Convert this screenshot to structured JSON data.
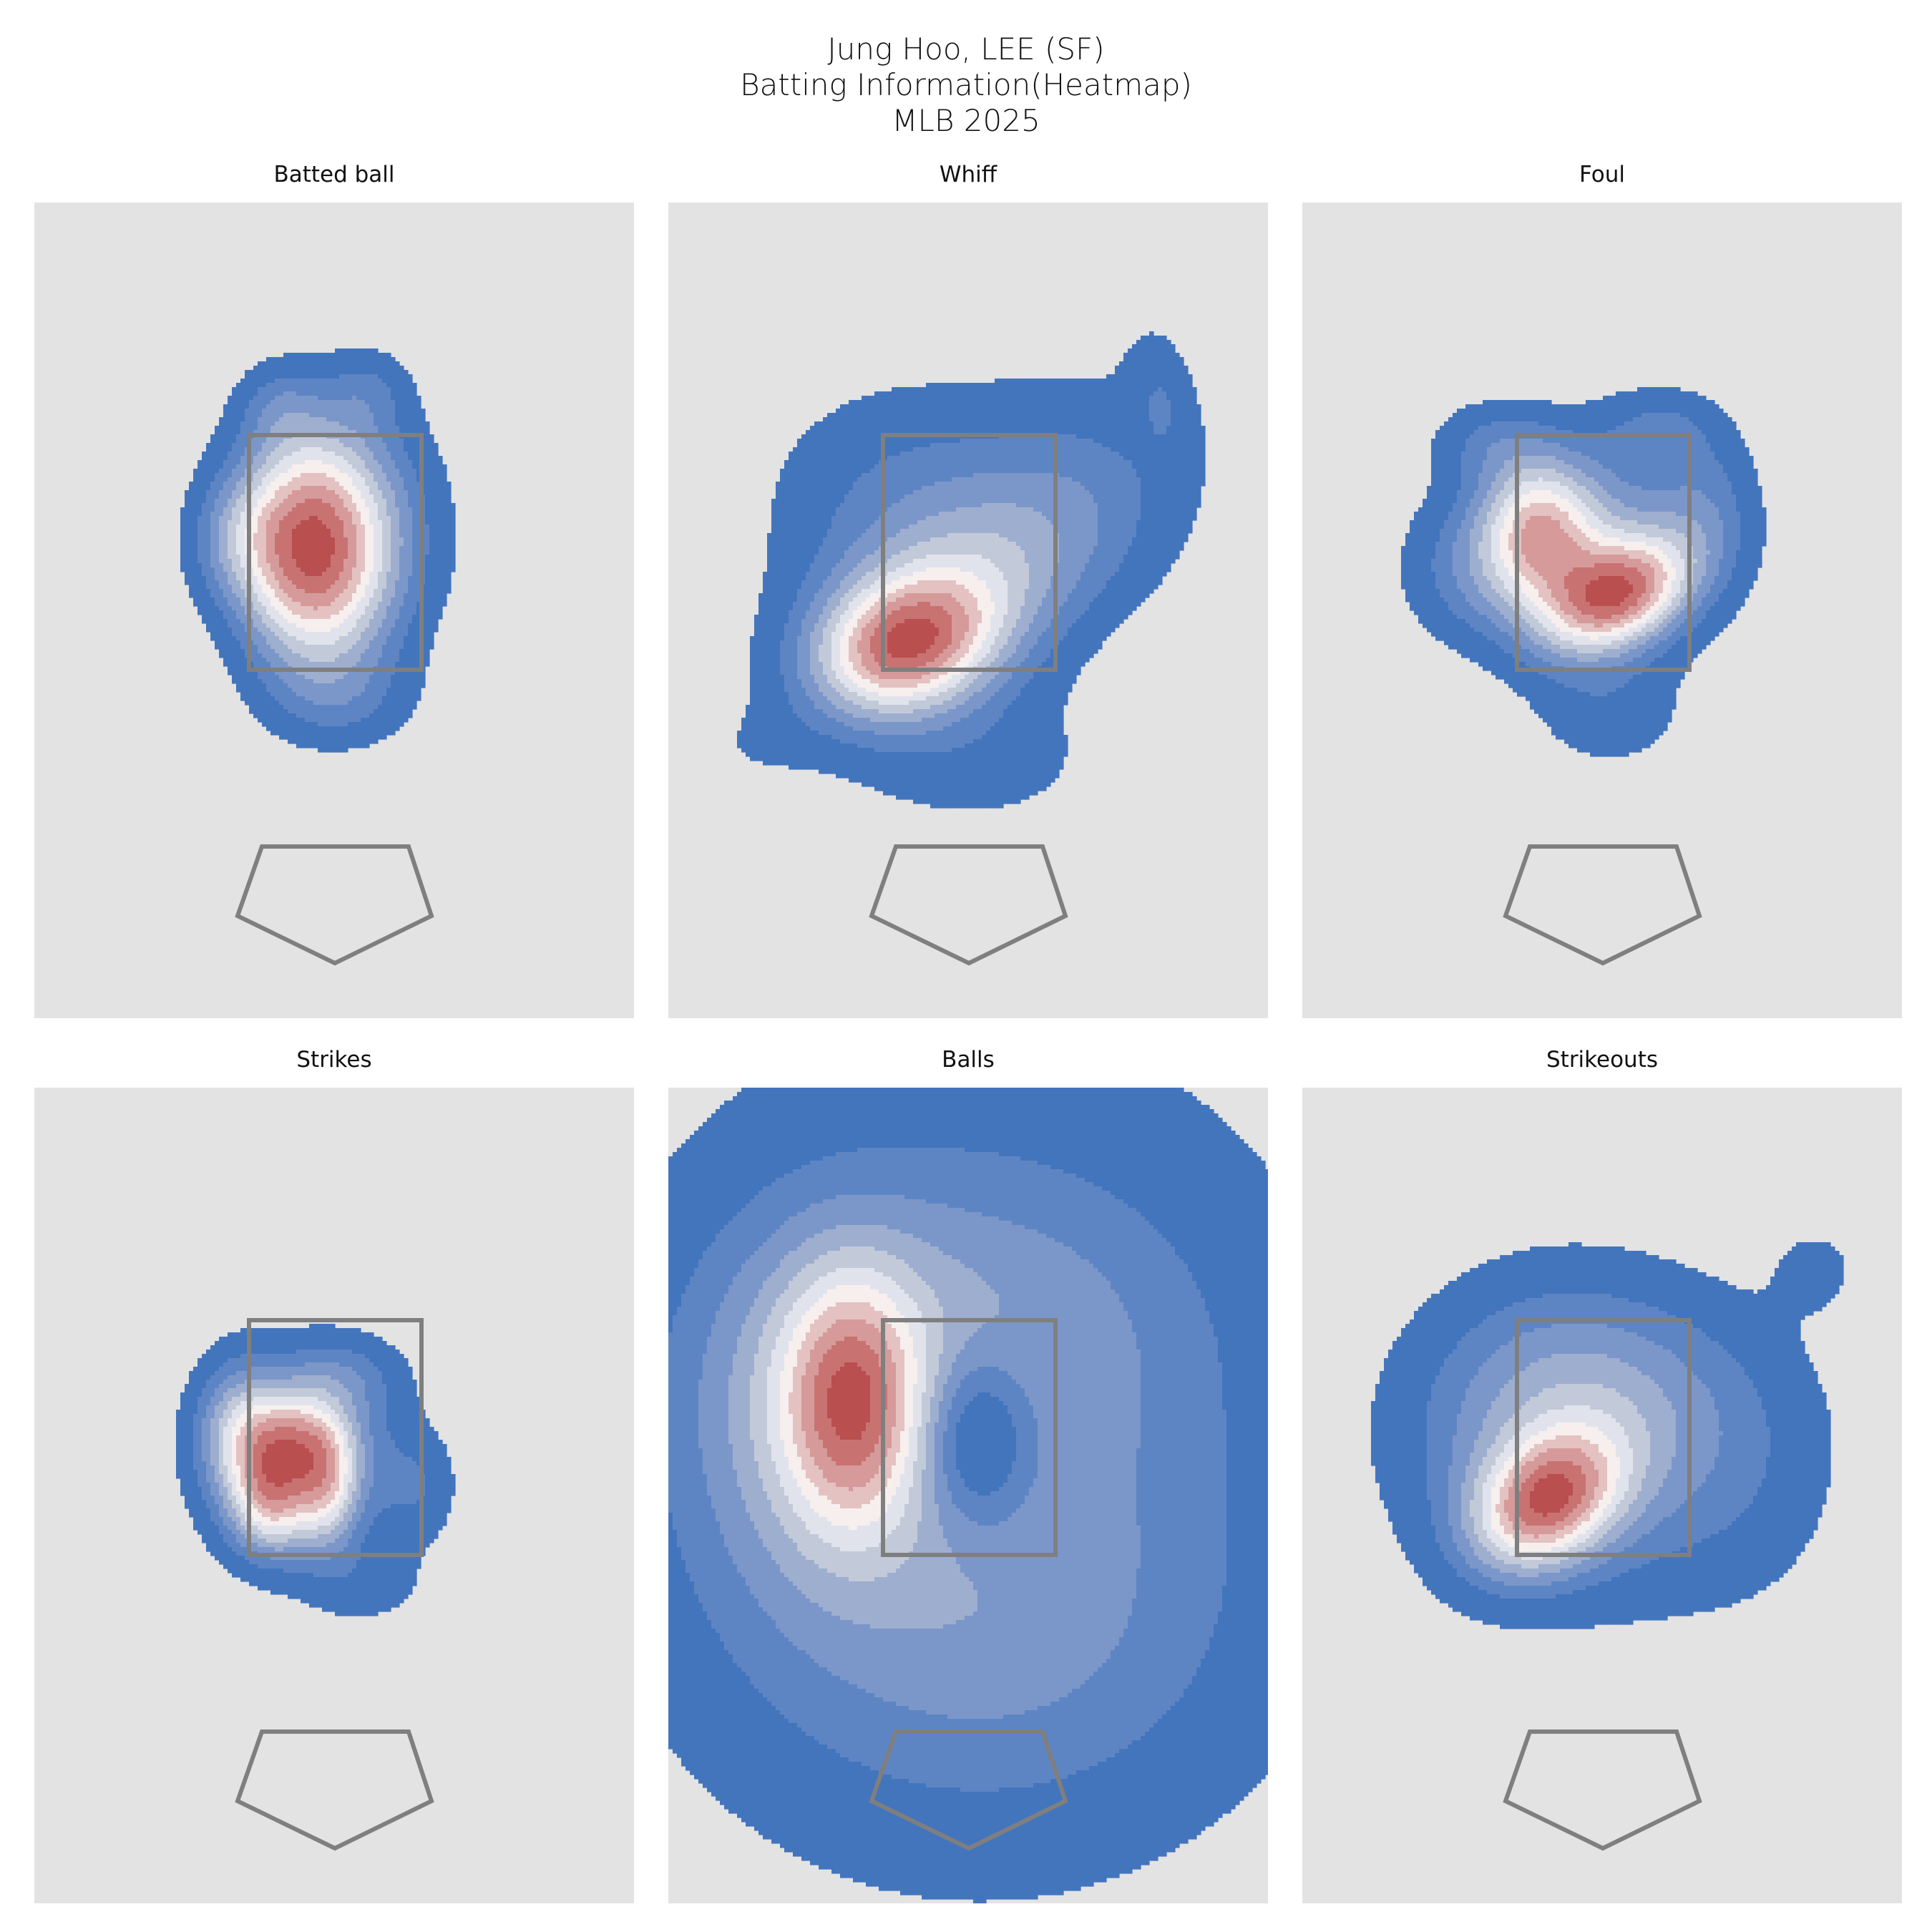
{
  "title": {
    "line1": "Jung Hoo, LEE (SF)",
    "line2": "Batting Information(Heatmap)",
    "line3": "MLB 2025"
  },
  "colors": {
    "panel_bg": "#e3e3e3",
    "zone_stroke": "#7f7f7f",
    "levels": [
      "#4375bd",
      "#5e85c3",
      "#7b97c9",
      "#9eaecf",
      "#c2cad9",
      "#e1e3ec",
      "#f6efee",
      "#e4c2c2",
      "#d69a9a",
      "#c97272",
      "#b94f4f"
    ]
  },
  "chart_data": [
    {
      "type": "heatmap",
      "title": "Batted ball",
      "hotspots": [
        {
          "x": -0.45,
          "z": 3.0
        }
      ],
      "extent": "compact, inside strike zone"
    },
    {
      "type": "heatmap",
      "title": "Whiff",
      "hotspots": [
        {
          "x": -0.5,
          "z": 2.0
        }
      ],
      "extent": "wide, extends to upper right outside zone"
    },
    {
      "type": "heatmap",
      "title": "Foul",
      "hotspots": [
        {
          "x": 0.1,
          "z": 2.6
        }
      ],
      "extent": "moderate, centered on zone"
    },
    {
      "type": "heatmap",
      "title": "Strikes",
      "hotspots": [
        {
          "x": -0.7,
          "z": 2.6
        }
      ],
      "extent": "compact, inside strike zone"
    },
    {
      "type": "heatmap",
      "title": "Balls",
      "hotspots": [
        {
          "x": -2.0,
          "z": 2.6
        }
      ],
      "extent": "very wide, cold spot inside zone"
    },
    {
      "type": "heatmap",
      "title": "Strikeouts",
      "hotspots": [
        {
          "x": -0.5,
          "z": 2.0
        }
      ],
      "extent": "wide, lower-inside concentration"
    }
  ]
}
